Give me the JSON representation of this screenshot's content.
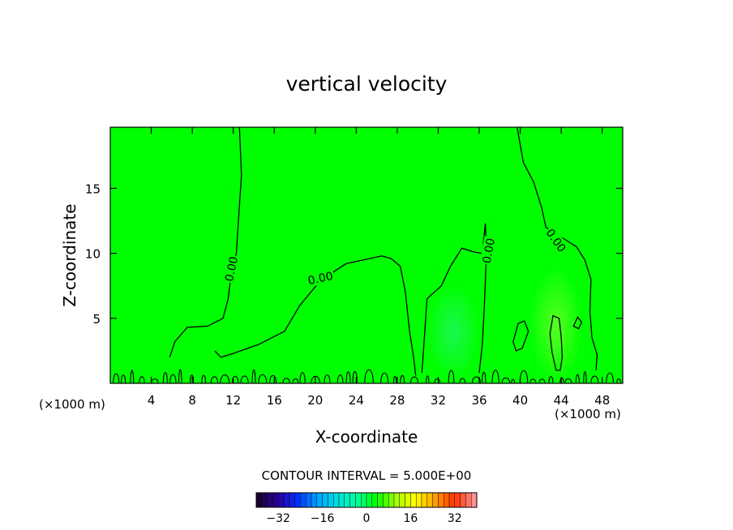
{
  "chart_data": {
    "type": "heatmap",
    "title": "vertical velocity",
    "xlabel": "X-coordinate",
    "ylabel": "Z-coordinate",
    "x_unit_left": "(×1000 m)",
    "x_unit_right": "(×1000 m)",
    "xlim": [
      0,
      50
    ],
    "ylim": [
      0,
      19.7
    ],
    "x_ticks": [
      4,
      8,
      12,
      16,
      20,
      24,
      28,
      32,
      36,
      40,
      44,
      48
    ],
    "y_ticks": [
      5,
      10,
      15
    ],
    "contour_interval_label": "CONTOUR INTERVAL = 5.000E+00",
    "contour_labels": [
      {
        "text": "0.00",
        "x": 11.8,
        "z": 8.8,
        "angle": -78
      },
      {
        "text": "0.00",
        "x": 20.5,
        "z": 8.1,
        "angle": -12
      },
      {
        "text": "0.00",
        "x": 36.9,
        "z": 10.2,
        "angle": -80
      },
      {
        "text": "0.00",
        "x": 43.5,
        "z": 11.0,
        "angle": 55
      }
    ],
    "contours": [
      {
        "name": "zero-contour-left",
        "points": [
          [
            12.6,
            19.7
          ],
          [
            12.8,
            16
          ],
          [
            12.5,
            12.5
          ],
          [
            12.3,
            10
          ],
          [
            11.8,
            8.5
          ],
          [
            11.5,
            6.5
          ],
          [
            11,
            5
          ],
          [
            9.5,
            4.4
          ],
          [
            7.5,
            4.3
          ],
          [
            6.3,
            3.2
          ],
          [
            5.8,
            2
          ]
        ]
      },
      {
        "name": "zero-contour-middle",
        "points": [
          [
            10.2,
            2.5
          ],
          [
            10.8,
            2
          ],
          [
            12,
            2.3
          ],
          [
            14.5,
            3
          ],
          [
            17,
            4
          ],
          [
            18.5,
            6
          ],
          [
            20.5,
            7.9
          ],
          [
            23,
            9.2
          ],
          [
            26.5,
            9.8
          ],
          [
            27.4,
            9.6
          ],
          [
            28.3,
            9
          ],
          [
            28.8,
            7
          ],
          [
            29.2,
            4
          ],
          [
            29.6,
            2
          ],
          [
            29.8,
            0.6
          ]
        ]
      },
      {
        "name": "zero-contour-right-inner",
        "points": [
          [
            30.4,
            0.8
          ],
          [
            30.6,
            3
          ],
          [
            30.9,
            6.5
          ],
          [
            32.3,
            7.5
          ],
          [
            33.2,
            9
          ],
          [
            34.3,
            10.4
          ],
          [
            35.5,
            10.1
          ],
          [
            36.3,
            10
          ],
          [
            36.6,
            12.3
          ],
          [
            36.7,
            10
          ],
          [
            36.5,
            6
          ],
          [
            36.3,
            3
          ],
          [
            36,
            0.8
          ]
        ]
      },
      {
        "name": "zero-contour-far-right",
        "points": [
          [
            39.7,
            19.7
          ],
          [
            40.3,
            17
          ],
          [
            41.3,
            15.5
          ],
          [
            42.1,
            13.5
          ],
          [
            42.5,
            12
          ],
          [
            43.5,
            11.5
          ],
          [
            45.5,
            10.5
          ],
          [
            46.3,
            9.5
          ],
          [
            46.9,
            8
          ],
          [
            46.8,
            5.5
          ],
          [
            47,
            3.5
          ],
          [
            47.5,
            2.2
          ],
          [
            47.4,
            1
          ]
        ]
      },
      {
        "name": "closed-contour-a",
        "closed": true,
        "points": [
          [
            39.3,
            3.2
          ],
          [
            39.8,
            4.6
          ],
          [
            40.4,
            4.8
          ],
          [
            40.8,
            4.0
          ],
          [
            40.2,
            2.7
          ],
          [
            39.6,
            2.5
          ]
        ]
      },
      {
        "name": "closed-contour-b",
        "closed": true,
        "points": [
          [
            43.5,
            1.0
          ],
          [
            43.1,
            2.4
          ],
          [
            42.9,
            3.8
          ],
          [
            43.2,
            5.2
          ],
          [
            43.8,
            5.0
          ],
          [
            44.0,
            3.5
          ],
          [
            44.1,
            2.0
          ],
          [
            43.9,
            1.0
          ]
        ]
      },
      {
        "name": "closed-contour-c",
        "closed": true,
        "points": [
          [
            45.2,
            4.4
          ],
          [
            45.6,
            5.1
          ],
          [
            46.0,
            4.7
          ],
          [
            45.7,
            4.2
          ]
        ]
      }
    ],
    "colorbar": {
      "ticks": [
        -32,
        -16,
        0,
        16,
        32
      ],
      "vmin": -40,
      "vmax": 40,
      "stops": [
        "#1a0033",
        "#2a00a0",
        "#0030ff",
        "#00a0ff",
        "#00e0e0",
        "#00ffa0",
        "#00ff00",
        "#a0ff00",
        "#ffff00",
        "#ffa000",
        "#ff3000",
        "#ff9090"
      ]
    },
    "field_color": "#00ff00",
    "highlights": [
      {
        "x": 33.5,
        "z": 4.0,
        "rx": 2.6,
        "rz": 3.8,
        "color": "#30f090"
      },
      {
        "x": 43.5,
        "z": 4.5,
        "rx": 2.6,
        "rz": 4.5,
        "color": "#a0ff40"
      }
    ]
  }
}
